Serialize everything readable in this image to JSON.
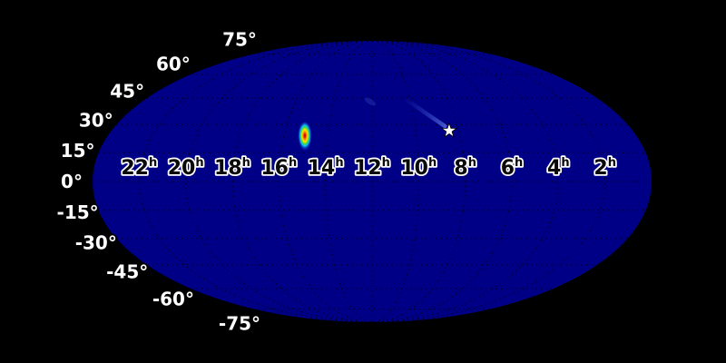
{
  "chart_data": {
    "type": "heatmap",
    "projection": "mollweide",
    "title": "",
    "background_color": "#000000",
    "map_color": "#000087",
    "colormap": "jet",
    "graticule": {
      "style": "dotted",
      "color": "#000000",
      "dec_step_deg": 15,
      "ra_step_hours": 2
    },
    "tick_label_colors": {
      "dec_fill": "#ffffff",
      "dec_halo": "#000000",
      "ra_fill": "#0a0a0a",
      "ra_halo": "#ffffff"
    },
    "dec_ticks": [
      {
        "label": "75°",
        "deg": 75
      },
      {
        "label": "60°",
        "deg": 60
      },
      {
        "label": "45°",
        "deg": 45
      },
      {
        "label": "30°",
        "deg": 30
      },
      {
        "label": "15°",
        "deg": 15
      },
      {
        "label": "0°",
        "deg": 0
      },
      {
        "label": "-15°",
        "deg": -15
      },
      {
        "label": "-30°",
        "deg": -30
      },
      {
        "label": "-45°",
        "deg": -45
      },
      {
        "label": "-60°",
        "deg": -60
      },
      {
        "label": "-75°",
        "deg": -75
      }
    ],
    "ra_ticks": [
      {
        "label": "22",
        "superscript": "h",
        "hours": 22
      },
      {
        "label": "20",
        "superscript": "h",
        "hours": 20
      },
      {
        "label": "18",
        "superscript": "h",
        "hours": 18
      },
      {
        "label": "16",
        "superscript": "h",
        "hours": 16
      },
      {
        "label": "14",
        "superscript": "h",
        "hours": 14
      },
      {
        "label": "12",
        "superscript": "h",
        "hours": 12
      },
      {
        "label": "10",
        "superscript": "h",
        "hours": 10
      },
      {
        "label": "8",
        "superscript": "h",
        "hours": 8
      },
      {
        "label": "6",
        "superscript": "h",
        "hours": 6
      },
      {
        "label": "4",
        "superscript": "h",
        "hours": 4
      },
      {
        "label": "2",
        "superscript": "h",
        "hours": 2
      }
    ],
    "features": [
      {
        "name": "probability-hotspot",
        "shape": "elongated-blob",
        "ra_hours": 15.05,
        "dec_deg": 23.8,
        "core_color": "#c40000",
        "ring_colors": [
          "#ff9500",
          "#f5ee00",
          "#55d435",
          "#00cfe8"
        ]
      },
      {
        "name": "probability-streak",
        "ra_hours_start": 10.3,
        "dec_deg_start": 45.0,
        "ra_hours_end": 8.6,
        "dec_deg_end": 29.2,
        "color": "#4f6fe0"
      },
      {
        "name": "faint-smudge",
        "ra_hours": 12.1,
        "dec_deg": 43.0,
        "color": "#4664dc"
      },
      {
        "name": "star-marker",
        "symbol": "star",
        "ra_hours": 8.45,
        "dec_deg": 26.7,
        "color": "#ffffff",
        "outline": "#000000"
      }
    ]
  }
}
